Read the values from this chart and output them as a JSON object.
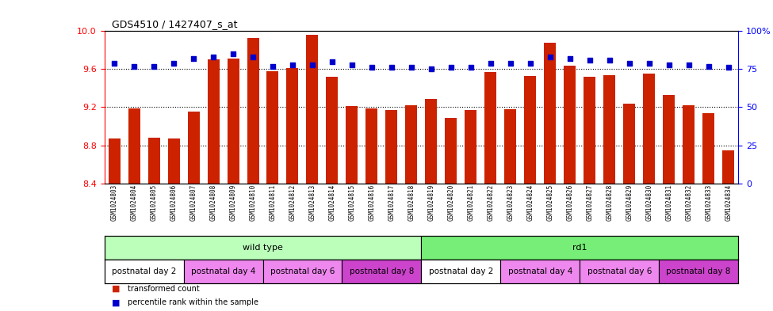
{
  "title": "GDS4510 / 1427407_s_at",
  "samples": [
    "GSM1024803",
    "GSM1024804",
    "GSM1024805",
    "GSM1024806",
    "GSM1024807",
    "GSM1024808",
    "GSM1024809",
    "GSM1024810",
    "GSM1024811",
    "GSM1024812",
    "GSM1024813",
    "GSM1024814",
    "GSM1024815",
    "GSM1024816",
    "GSM1024817",
    "GSM1024818",
    "GSM1024819",
    "GSM1024820",
    "GSM1024821",
    "GSM1024822",
    "GSM1024823",
    "GSM1024824",
    "GSM1024825",
    "GSM1024826",
    "GSM1024827",
    "GSM1024828",
    "GSM1024829",
    "GSM1024830",
    "GSM1024831",
    "GSM1024832",
    "GSM1024833",
    "GSM1024834"
  ],
  "bar_values": [
    8.87,
    9.19,
    8.88,
    8.87,
    9.15,
    9.7,
    9.71,
    9.93,
    9.58,
    9.61,
    9.96,
    9.52,
    9.21,
    9.19,
    9.17,
    9.22,
    9.29,
    9.09,
    9.17,
    9.57,
    9.18,
    9.53,
    9.88,
    9.64,
    9.52,
    9.54,
    9.24,
    9.55,
    9.33,
    9.22,
    9.14,
    8.75
  ],
  "percentile_values": [
    79,
    77,
    77,
    79,
    82,
    83,
    85,
    83,
    77,
    78,
    78,
    80,
    78,
    76,
    76,
    76,
    75,
    76,
    76,
    79,
    79,
    79,
    83,
    82,
    81,
    81,
    79,
    79,
    78,
    78,
    77,
    76
  ],
  "ylim_left": [
    8.4,
    10.0
  ],
  "ylim_right": [
    0,
    100
  ],
  "yticks_left": [
    8.4,
    8.8,
    9.2,
    9.6,
    10.0
  ],
  "yticks_right": [
    0,
    25,
    50,
    75,
    100
  ],
  "ytick_labels_right": [
    "0",
    "25",
    "50",
    "75",
    "100%"
  ],
  "bar_color": "#cc2200",
  "dot_color": "#0000cc",
  "bar_bottom": 8.4,
  "genotype_groups": [
    {
      "label": "wild type",
      "start": 0,
      "end": 16,
      "color": "#bbffbb"
    },
    {
      "label": "rd1",
      "start": 16,
      "end": 32,
      "color": "#77ee77"
    }
  ],
  "age_groups": [
    {
      "label": "postnatal day 2",
      "start": 0,
      "end": 4,
      "color": "#ffffff"
    },
    {
      "label": "postnatal day 4",
      "start": 4,
      "end": 8,
      "color": "#ee88ee"
    },
    {
      "label": "postnatal day 6",
      "start": 8,
      "end": 12,
      "color": "#ee88ee"
    },
    {
      "label": "postnatal day 8",
      "start": 12,
      "end": 16,
      "color": "#cc44cc"
    },
    {
      "label": "postnatal day 2",
      "start": 16,
      "end": 20,
      "color": "#ffffff"
    },
    {
      "label": "postnatal day 4",
      "start": 20,
      "end": 24,
      "color": "#ee88ee"
    },
    {
      "label": "postnatal day 6",
      "start": 24,
      "end": 28,
      "color": "#ee88ee"
    },
    {
      "label": "postnatal day 8",
      "start": 28,
      "end": 32,
      "color": "#cc44cc"
    }
  ],
  "legend_items": [
    {
      "label": "transformed count",
      "color": "#cc2200"
    },
    {
      "label": "percentile rank within the sample",
      "color": "#0000cc"
    }
  ]
}
